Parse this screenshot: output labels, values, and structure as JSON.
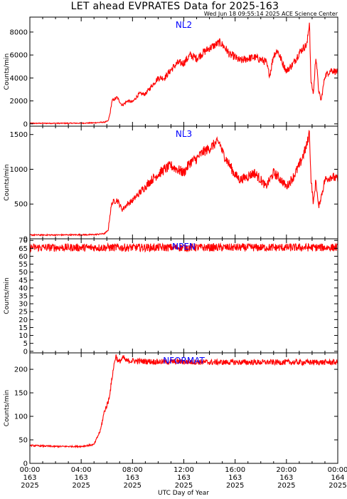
{
  "title": "LET ahead EVPRATES Data for 2025-163",
  "timestamp": "Wed Jun 18 09:55:14 2025 ACE Science Center",
  "xlabel": "UTC Day of Year",
  "x_ticks": [
    {
      "lines": [
        "00:00",
        "163",
        "2025"
      ]
    },
    {
      "lines": [
        "04:00",
        "163",
        "2025"
      ]
    },
    {
      "lines": [
        "08:00",
        "163",
        "2025"
      ]
    },
    {
      "lines": [
        "12:00",
        "163",
        "2025"
      ]
    },
    {
      "lines": [
        "16:00",
        "163",
        "2025"
      ]
    },
    {
      "lines": [
        "20:00",
        "163",
        "2025"
      ]
    },
    {
      "lines": [
        "00:00",
        "164",
        "2025"
      ]
    }
  ],
  "colors": {
    "series": "#ff0000",
    "label": "#0000ff",
    "axis": "#000000"
  },
  "chart_data": [
    {
      "type": "line",
      "panel_label": "NL2",
      "ylabel": "Counts/min",
      "xlim": [
        0,
        24
      ],
      "ylim": [
        -200,
        9300
      ],
      "yticks": [
        0,
        2000,
        4000,
        6000,
        8000
      ],
      "noise": 350,
      "x": [
        0,
        2,
        4,
        5,
        5.8,
        6.1,
        6.25,
        6.4,
        6.8,
        7.2,
        7.6,
        8,
        8.5,
        9,
        9.5,
        10,
        10.5,
        11,
        11.5,
        12,
        12.5,
        13,
        13.5,
        14,
        14.5,
        14.8,
        15,
        15.3,
        15.6,
        15.9,
        16.1,
        16.4,
        17,
        17.5,
        18,
        18.4,
        18.7,
        19,
        19.3,
        19.7,
        20,
        20.5,
        21,
        21.3,
        21.6,
        21.8,
        21.9,
        22.1,
        22.3,
        22.5,
        22.7,
        23,
        23.5,
        24
      ],
      "y": [
        50,
        50,
        60,
        90,
        150,
        250,
        900,
        2000,
        2300,
        1600,
        2000,
        1900,
        2600,
        2600,
        3300,
        4000,
        4000,
        4700,
        5300,
        5300,
        6000,
        5700,
        6200,
        6600,
        6900,
        7100,
        6900,
        6500,
        6000,
        5900,
        5700,
        5500,
        5700,
        5800,
        5600,
        5400,
        4200,
        6000,
        6400,
        5300,
        4600,
        5200,
        6200,
        6600,
        6900,
        9000,
        3800,
        2600,
        6000,
        3000,
        2000,
        4200,
        4700,
        4500
      ]
    },
    {
      "type": "line",
      "panel_label": "NL3",
      "ylabel": "Counts/min",
      "xlim": [
        0,
        24
      ],
      "ylim": [
        0,
        1620
      ],
      "yticks": [
        0,
        500,
        1000,
        1500
      ],
      "noise": 75,
      "x": [
        0,
        2,
        4,
        5,
        5.8,
        6.1,
        6.25,
        6.4,
        6.8,
        7.2,
        7.6,
        8,
        8.5,
        9,
        9.5,
        10,
        10.5,
        11,
        11.5,
        12,
        12.5,
        13,
        13.5,
        14,
        14.5,
        14.8,
        15,
        15.3,
        15.6,
        15.9,
        16.1,
        16.4,
        17,
        17.5,
        18,
        18.4,
        18.7,
        19,
        19.3,
        19.7,
        20,
        20.5,
        21,
        21.3,
        21.6,
        21.8,
        21.9,
        22.1,
        22.3,
        22.5,
        22.7,
        23,
        23.5,
        24
      ],
      "y": [
        55,
        55,
        58,
        60,
        75,
        120,
        350,
        520,
        560,
        420,
        500,
        550,
        650,
        750,
        850,
        930,
        1000,
        1050,
        1000,
        950,
        1100,
        1150,
        1250,
        1300,
        1380,
        1380,
        1250,
        1150,
        1050,
        950,
        900,
        850,
        900,
        950,
        850,
        750,
        850,
        950,
        900,
        820,
        750,
        880,
        1050,
        1200,
        1350,
        1550,
        900,
        500,
        850,
        450,
        600,
        850,
        900,
        850
      ]
    },
    {
      "type": "line",
      "panel_label": "NPEN",
      "ylabel": "Counts/min",
      "xlim": [
        0,
        24
      ],
      "ylim": [
        -1,
        71
      ],
      "yticks": [
        0,
        5,
        10,
        15,
        20,
        25,
        30,
        35,
        40,
        45,
        50,
        55,
        60,
        65,
        70
      ],
      "noise": 2.5,
      "x": [
        0,
        24
      ],
      "y": [
        65.5,
        65.5
      ]
    },
    {
      "type": "line",
      "panel_label": "NFORMAT",
      "ylabel": "Counts/min",
      "xlim": [
        0,
        24
      ],
      "ylim": [
        0,
        235
      ],
      "yticks": [
        0,
        50,
        100,
        150,
        200
      ],
      "noise": 6,
      "x": [
        0,
        2,
        4,
        5,
        5.5,
        5.8,
        6.1,
        6.3,
        6.5,
        6.7,
        6.9,
        7.1,
        7.3,
        7.5,
        8,
        10,
        12,
        14,
        16,
        18,
        20,
        22,
        24
      ],
      "y": [
        38,
        36,
        36,
        40,
        70,
        110,
        130,
        160,
        200,
        230,
        215,
        220,
        225,
        218,
        218,
        216,
        216,
        215,
        215,
        215,
        215,
        215,
        215
      ]
    }
  ]
}
